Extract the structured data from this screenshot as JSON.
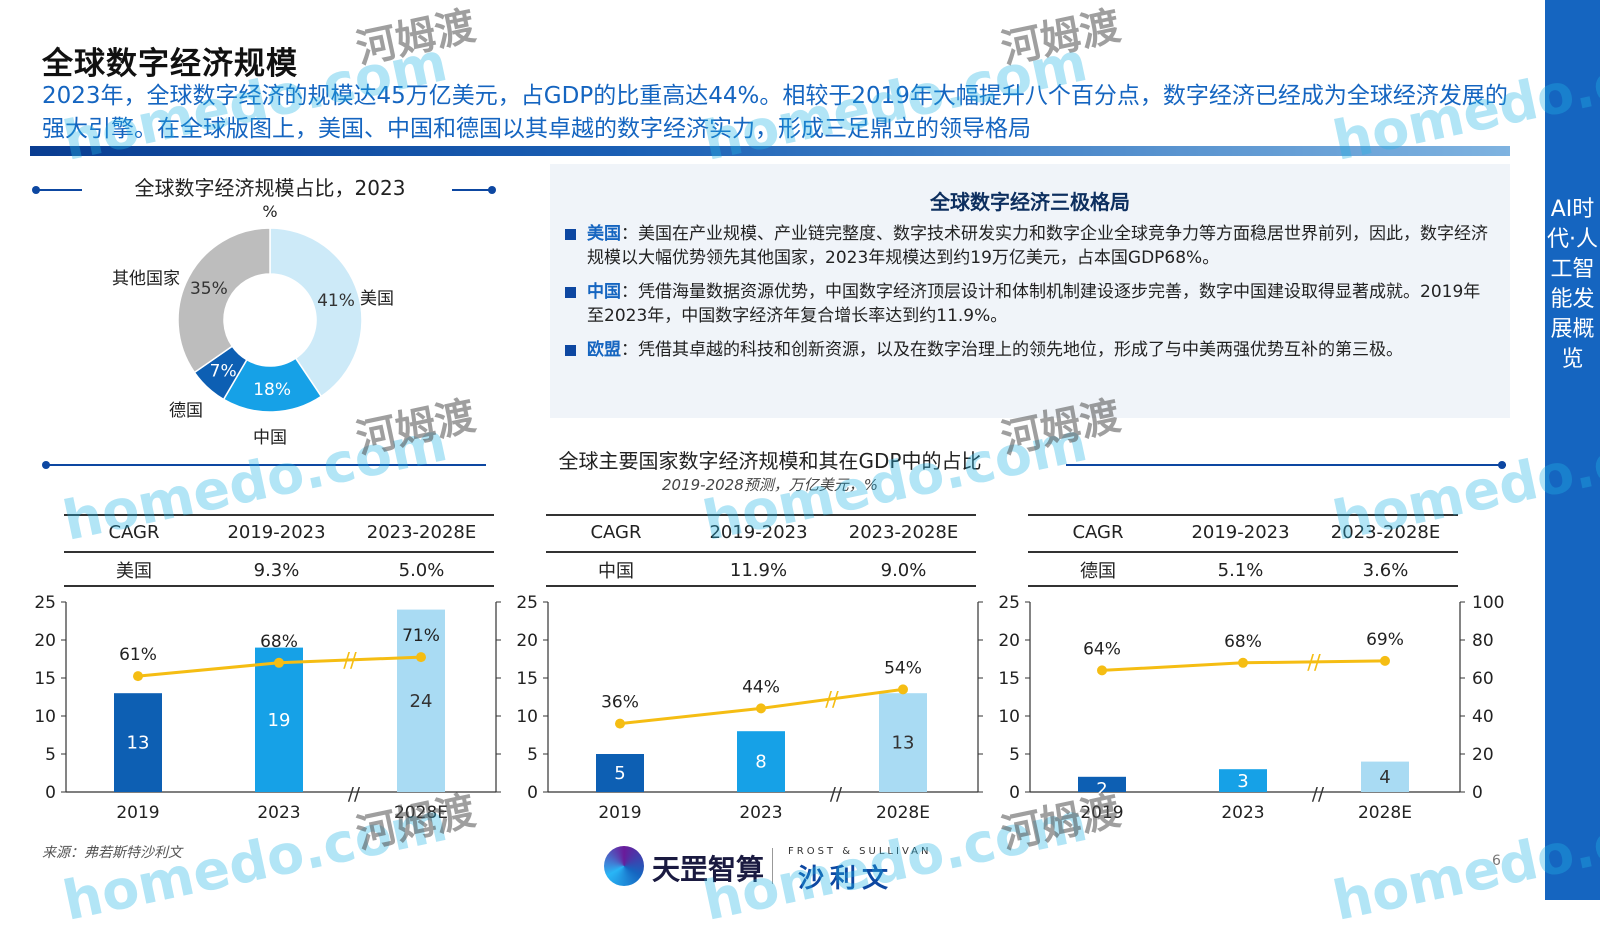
{
  "title": "全球数字经济规模",
  "lead": "2023年，全球数字经济的规模达45万亿美元，占GDP的比重高达44%。相较于2019年大幅提升八个百分点，数字经济已经成为全球经济发展的强大引擎。在全球版图上，美国、中国和德国以其卓越的数字经济实力，形成三足鼎立的领导格局",
  "sidebar": "AI时代·人工智能发展概览",
  "pie_section": {
    "title": "全球数字经济规模占比，2023",
    "unit": "%"
  },
  "panel": {
    "title": "全球数字经济三极格局",
    "items": [
      {
        "head": "美国",
        "sep": "：",
        "text": "美国在产业规模、产业链完整度、数字技术研发实力和数字企业全球竞争力等方面稳居世界前列，因此，数字经济规模以大幅优势领先其他国家，2023年规模达到约19万亿美元，占本国GDP68%。"
      },
      {
        "head": "中国",
        "sep": "：",
        "text": "凭借海量数据资源优势，中国数字经济顶层设计和体制机制建设逐步完善，数字中国建设取得显著成就。2019年至2023年，中国数字经济年复合增长率达到约11.9%。"
      },
      {
        "head": "欧盟",
        "sep": "：",
        "text": "凭借其卓越的科技和创新资源，以及在数字治理上的领先地位，形成了与中美两强优势互补的第三极。"
      }
    ]
  },
  "bar_section": {
    "title": "全球主要国家数字经济规模和其在GDP中的占比",
    "subtitle": "2019-2028预测，万亿美元，%"
  },
  "cagr_headers": [
    "CAGR",
    "2019-2023",
    "2023-2028E"
  ],
  "source": "来源：弗若斯特沙利文",
  "page_number": "6",
  "logos": {
    "tianzui": "天罡智算",
    "frost_small": "FROST & SULLIVAN",
    "frost": "沙利文"
  },
  "watermark": {
    "site": "homedo.com",
    "name": "河姆渡"
  },
  "colors": {
    "accent": "#1565c0",
    "dark_blue": "#0d5fb3",
    "mid_blue": "#16a1e7",
    "light_blue": "#a9dbf3",
    "line": "#f5bd13",
    "pie_grey": "#bdbdbd"
  },
  "chart_data": [
    {
      "type": "pie",
      "title": "全球数字经济规模占比，2023",
      "unit": "%",
      "slices": [
        {
          "label": "美国",
          "value": 41,
          "display": "41%",
          "color": "#cdeaf8"
        },
        {
          "label": "中国",
          "value": 18,
          "display": "18%",
          "color": "#16a1e7"
        },
        {
          "label": "德国",
          "value": 7,
          "display": "7%",
          "color": "#0d5fb3"
        },
        {
          "label": "其他国家",
          "value": 35,
          "display": "35%",
          "color": "#bdbdbd"
        }
      ]
    },
    {
      "type": "bar",
      "country": "美国",
      "cagr": [
        "9.3%",
        "5.0%"
      ],
      "categories": [
        "2019",
        "2023",
        "2028E"
      ],
      "values": [
        13,
        19,
        24
      ],
      "bar_labels": [
        "13",
        "19",
        "24"
      ],
      "line_values": [
        61,
        68,
        71
      ],
      "line_labels": [
        "61%",
        "68%",
        "71%"
      ],
      "ylim": [
        0,
        25
      ],
      "yticks": [
        "0",
        "5",
        "10",
        "15",
        "20",
        "25"
      ],
      "y2lim": [
        0,
        100
      ],
      "y2ticks": [],
      "bar_colors": [
        "#0d5fb3",
        "#16a1e7",
        "#a9dbf3"
      ]
    },
    {
      "type": "bar",
      "country": "中国",
      "cagr": [
        "11.9%",
        "9.0%"
      ],
      "categories": [
        "2019",
        "2023",
        "2028E"
      ],
      "values": [
        5,
        8,
        13
      ],
      "bar_labels": [
        "5",
        "8",
        "13"
      ],
      "line_values": [
        36,
        44,
        54
      ],
      "line_labels": [
        "36%",
        "44%",
        "54%"
      ],
      "ylim": [
        0,
        25
      ],
      "yticks": [
        "0",
        "5",
        "10",
        "15",
        "20",
        "25"
      ],
      "y2lim": [
        0,
        100
      ],
      "y2ticks": [],
      "bar_colors": [
        "#0d5fb3",
        "#16a1e7",
        "#a9dbf3"
      ]
    },
    {
      "type": "bar",
      "country": "德国",
      "cagr": [
        "5.1%",
        "3.6%"
      ],
      "categories": [
        "2019",
        "2023",
        "2028E"
      ],
      "values": [
        2,
        3,
        4
      ],
      "bar_labels": [
        "2",
        "3",
        "4"
      ],
      "line_values": [
        64,
        68,
        69
      ],
      "line_labels": [
        "64%",
        "68%",
        "69%"
      ],
      "ylim": [
        0,
        25
      ],
      "yticks": [
        "0",
        "5",
        "10",
        "15",
        "20",
        "25"
      ],
      "y2lim": [
        0,
        100
      ],
      "y2ticks": [
        "0",
        "20",
        "40",
        "60",
        "80",
        "100"
      ],
      "bar_colors": [
        "#0d5fb3",
        "#16a1e7",
        "#a9dbf3"
      ]
    }
  ]
}
